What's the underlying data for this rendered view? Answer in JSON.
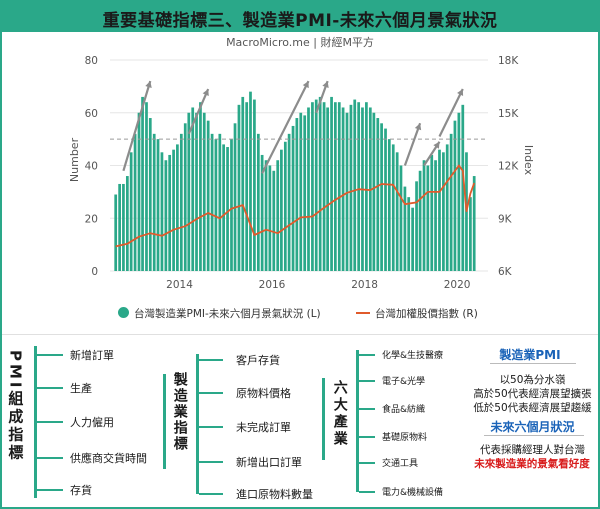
{
  "title": "重要基礎指標三、製造業PMI-未來六個月景氣狀況",
  "source": "MacroMicro.me | 財經M平方",
  "colors": {
    "accent": "#2aa889",
    "line": "#e05a2b",
    "info_head": "#1a63b8",
    "info_red": "#d81b1b"
  },
  "chart_data": {
    "type": "bar",
    "title": "",
    "ylabel": "Number",
    "y2label": "Index",
    "ylim": [
      0,
      80
    ],
    "y2lim": [
      6000,
      18000
    ],
    "yticks": [
      "0",
      "20",
      "40",
      "60",
      "80"
    ],
    "y2ticks": [
      "6K",
      "9K",
      "12K",
      "15K",
      "18K"
    ],
    "xticks": [
      "2014",
      "2016",
      "2018",
      "2020"
    ],
    "reference_line": 50,
    "series": [
      {
        "name": "台灣製造業PMI-未來六個月景氣狀況 (L)",
        "kind": "bar",
        "axis": "left",
        "x": [
          "2012-08",
          "2012-09",
          "2012-10",
          "2012-11",
          "2012-12",
          "2013-01",
          "2013-02",
          "2013-03",
          "2013-04",
          "2013-05",
          "2013-06",
          "2013-07",
          "2013-08",
          "2013-09",
          "2013-10",
          "2013-11",
          "2013-12",
          "2014-01",
          "2014-02",
          "2014-03",
          "2014-04",
          "2014-05",
          "2014-06",
          "2014-07",
          "2014-08",
          "2014-09",
          "2014-10",
          "2014-11",
          "2014-12",
          "2015-01",
          "2015-02",
          "2015-03",
          "2015-04",
          "2015-05",
          "2015-06",
          "2015-07",
          "2015-08",
          "2015-09",
          "2015-10",
          "2015-11",
          "2015-12",
          "2016-01",
          "2016-02",
          "2016-03",
          "2016-04",
          "2016-05",
          "2016-06",
          "2016-07",
          "2016-08",
          "2016-09",
          "2016-10",
          "2016-11",
          "2016-12",
          "2017-01",
          "2017-02",
          "2017-03",
          "2017-04",
          "2017-05",
          "2017-06",
          "2017-07",
          "2017-08",
          "2017-09",
          "2017-10",
          "2017-11",
          "2017-12",
          "2018-01",
          "2018-02",
          "2018-03",
          "2018-04",
          "2018-05",
          "2018-06",
          "2018-07",
          "2018-08",
          "2018-09",
          "2018-10",
          "2018-11",
          "2018-12",
          "2019-01",
          "2019-02",
          "2019-03",
          "2019-04",
          "2019-05",
          "2019-06",
          "2019-07",
          "2019-08",
          "2019-09",
          "2019-10",
          "2019-11",
          "2019-12",
          "2020-01",
          "2020-02",
          "2020-03",
          "2020-04",
          "2020-05"
        ],
        "values": [
          29,
          33,
          33,
          36,
          45,
          52,
          60,
          66,
          64,
          58,
          52,
          50,
          45,
          42,
          44,
          46,
          48,
          52,
          56,
          60,
          62,
          60,
          64,
          60,
          57,
          52,
          50,
          52,
          48,
          47,
          50,
          56,
          63,
          66,
          64,
          68,
          65,
          52,
          44,
          42,
          40,
          38,
          42,
          46,
          49,
          52,
          55,
          58,
          60,
          59,
          62,
          64,
          65,
          66,
          64,
          62,
          66,
          64,
          64,
          62,
          60,
          63,
          65,
          64,
          62,
          64,
          62,
          60,
          58,
          56,
          54,
          50,
          48,
          45,
          40,
          32,
          28,
          24,
          34,
          38,
          42,
          40,
          44,
          42,
          46,
          45,
          48,
          52,
          57,
          60,
          63,
          45,
          28,
          36
        ]
      },
      {
        "name": "台灣加權股價指數 (R)",
        "kind": "line",
        "axis": "right",
        "x": [
          "2012-08",
          "2012-11",
          "2013-02",
          "2013-05",
          "2013-08",
          "2013-11",
          "2014-02",
          "2014-05",
          "2014-08",
          "2014-11",
          "2015-02",
          "2015-05",
          "2015-08",
          "2015-11",
          "2016-02",
          "2016-05",
          "2016-08",
          "2016-11",
          "2017-02",
          "2017-05",
          "2017-08",
          "2017-11",
          "2018-02",
          "2018-05",
          "2018-08",
          "2018-11",
          "2019-02",
          "2019-05",
          "2019-08",
          "2019-11",
          "2020-01",
          "2020-02",
          "2020-03",
          "2020-04",
          "2020-05"
        ],
        "values": [
          7400,
          7550,
          7950,
          8150,
          8000,
          8350,
          8550,
          8950,
          9300,
          9000,
          9550,
          9750,
          8050,
          8350,
          8150,
          8600,
          9050,
          9100,
          9600,
          10050,
          10450,
          10650,
          10600,
          10950,
          10900,
          9800,
          9900,
          10500,
          10500,
          11400,
          12000,
          11700,
          9400,
          10400,
          11000
        ]
      }
    ],
    "legend_position": "bottom"
  },
  "diagram": {
    "pmi_label": "PMI組成指標",
    "pmi_items": [
      "新增訂單",
      "生產",
      "人力僱用",
      "供應商交貨時間",
      "存貨"
    ],
    "mfg_label": "製造業指標",
    "mfg_items": [
      "客戶存貨",
      "原物料價格",
      "未完成訂單",
      "新增出口訂單",
      "進口原物料數量"
    ],
    "industry_label": "六大產業",
    "industry_items": [
      "化學&生技醫療",
      "電子&光學",
      "食品&紡織",
      "基礎原物料",
      "交通工具",
      "電力&機械設備"
    ],
    "info": {
      "pmi_head": "製造業PMI",
      "pmi_lines": [
        "以50為分水嶺",
        "高於50代表經濟展望擴張",
        "低於50代表經濟展望趨緩"
      ],
      "outlook_head": "未來六個月狀況",
      "outlook_line": "代表採購經理人對台灣",
      "outlook_red": "未來製造業的景氣看好度"
    }
  }
}
